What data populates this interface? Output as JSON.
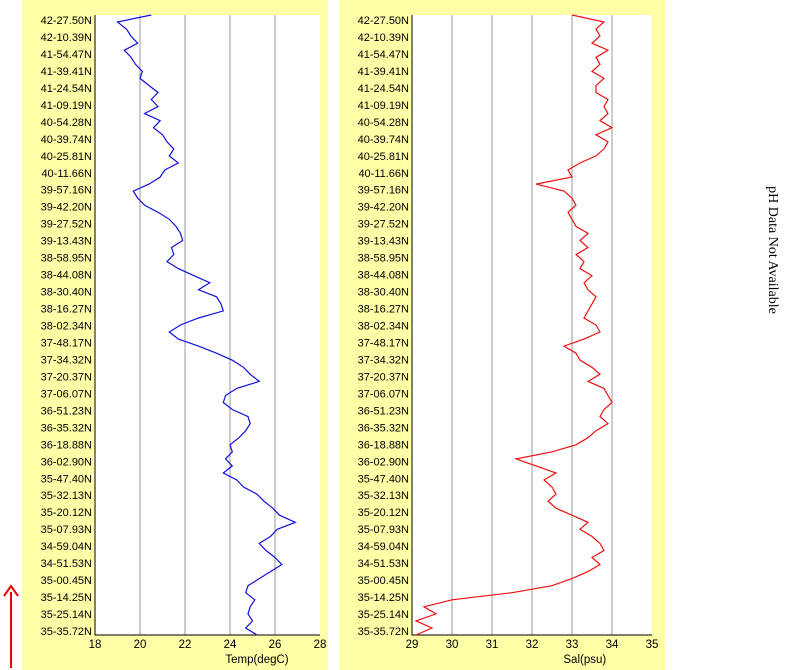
{
  "chart_data": [
    {
      "type": "line",
      "y_axis": "latitude",
      "latitude_ticks": [
        "42-27.50N",
        "42-10.39N",
        "41-54.47N",
        "41-39.41N",
        "41-24.54N",
        "41-09.19N",
        "40-54.28N",
        "40-39.74N",
        "40-25.81N",
        "40-11.66N",
        "39-57.16N",
        "39-42.20N",
        "39-27.52N",
        "39-13.43N",
        "38-58.95N",
        "38-44.08N",
        "38-30.40N",
        "38-16.27N",
        "38-02.34N",
        "37-48.17N",
        "37-34.32N",
        "37-20.37N",
        "37-06.07N",
        "36-51.23N",
        "36-35.32N",
        "36-18.88N",
        "36-02.90N",
        "35-47.40N",
        "35-32.13N",
        "35-20.12N",
        "35-07.93N",
        "34-59.04N",
        "34-51.53N",
        "35-00.45N",
        "35-14.25N",
        "35-25.14N",
        "35-35.72N"
      ],
      "x_ticks": [
        "18",
        "20",
        "22",
        "24",
        "26",
        "28"
      ],
      "xlim": [
        18,
        28
      ],
      "xlabel": "Temp(degC)",
      "grid": true,
      "color": "#1010e0",
      "series": [
        {
          "values": [
            20.5,
            19.0,
            19.4,
            19.6,
            19.9,
            19.3,
            19.6,
            19.8,
            20.1,
            20.0,
            20.4,
            20.8,
            20.5,
            20.8,
            20.2,
            20.9,
            20.6,
            21.0,
            21.2,
            21.5,
            21.3,
            21.7,
            21.1,
            20.9,
            20.4,
            19.7,
            19.9,
            20.2,
            20.8,
            21.3,
            21.6,
            21.8,
            21.9,
            21.4,
            21.5,
            21.2,
            21.7,
            22.4,
            23.1,
            22.6,
            23.4,
            23.6,
            23.7,
            22.6,
            21.8,
            21.3,
            21.7,
            22.6,
            23.4,
            24.1,
            24.6,
            24.9,
            25.3,
            24.3,
            23.8,
            23.7,
            24.1,
            24.8,
            24.9,
            24.7,
            24.4,
            24.0,
            24.1,
            23.8,
            24.1,
            23.7,
            24.3,
            24.6,
            25.2,
            25.5,
            25.9,
            26.2,
            26.9,
            26.1,
            25.8,
            25.3,
            25.6,
            26.0,
            26.3,
            25.8,
            25.3,
            24.8,
            24.7,
            25.1,
            24.9,
            24.8,
            25.0,
            24.7,
            25.2
          ]
        }
      ]
    },
    {
      "type": "line",
      "y_axis": "latitude",
      "latitude_ticks": [
        "42-27.50N",
        "42-10.39N",
        "41-54.47N",
        "41-39.41N",
        "41-24.54N",
        "41-09.19N",
        "40-54.28N",
        "40-39.74N",
        "40-25.81N",
        "40-11.66N",
        "39-57.16N",
        "39-42.20N",
        "39-27.52N",
        "39-13.43N",
        "38-58.95N",
        "38-44.08N",
        "38-30.40N",
        "38-16.27N",
        "38-02.34N",
        "37-48.17N",
        "37-34.32N",
        "37-20.37N",
        "37-06.07N",
        "36-51.23N",
        "36-35.32N",
        "36-18.88N",
        "36-02.90N",
        "35-47.40N",
        "35-32.13N",
        "35-20.12N",
        "35-07.93N",
        "34-59.04N",
        "34-51.53N",
        "35-00.45N",
        "35-14.25N",
        "35-25.14N",
        "35-35.72N"
      ],
      "x_ticks": [
        "29",
        "30",
        "31",
        "32",
        "33",
        "34",
        "35"
      ],
      "xlim": [
        29,
        35
      ],
      "xlabel": "Sal(psu)",
      "grid": true,
      "color": "#ee1111",
      "series": [
        {
          "values": [
            33.0,
            33.8,
            33.6,
            33.7,
            33.5,
            33.9,
            33.6,
            33.7,
            33.5,
            33.8,
            33.6,
            33.6,
            33.9,
            33.8,
            33.9,
            33.7,
            34.0,
            33.6,
            33.9,
            33.8,
            33.6,
            33.2,
            32.9,
            33.0,
            32.1,
            32.8,
            33.0,
            33.1,
            32.9,
            33.0,
            33.1,
            33.4,
            33.2,
            33.4,
            33.1,
            33.3,
            33.2,
            33.5,
            33.3,
            33.4,
            33.6,
            33.5,
            33.4,
            33.3,
            33.6,
            33.7,
            33.3,
            32.8,
            33.1,
            33.2,
            33.5,
            33.7,
            33.4,
            33.8,
            33.9,
            34.0,
            33.8,
            33.7,
            33.9,
            33.6,
            33.4,
            33.1,
            32.5,
            31.6,
            32.1,
            32.6,
            32.3,
            32.5,
            32.6,
            32.4,
            32.6,
            33.0,
            33.4,
            33.2,
            33.5,
            33.7,
            33.8,
            33.5,
            33.7,
            33.4,
            33.0,
            32.5,
            31.5,
            30.0,
            29.3,
            29.6,
            29.1,
            29.5,
            29.1
          ]
        }
      ]
    }
  ],
  "side_note": "pH Data Not Available"
}
